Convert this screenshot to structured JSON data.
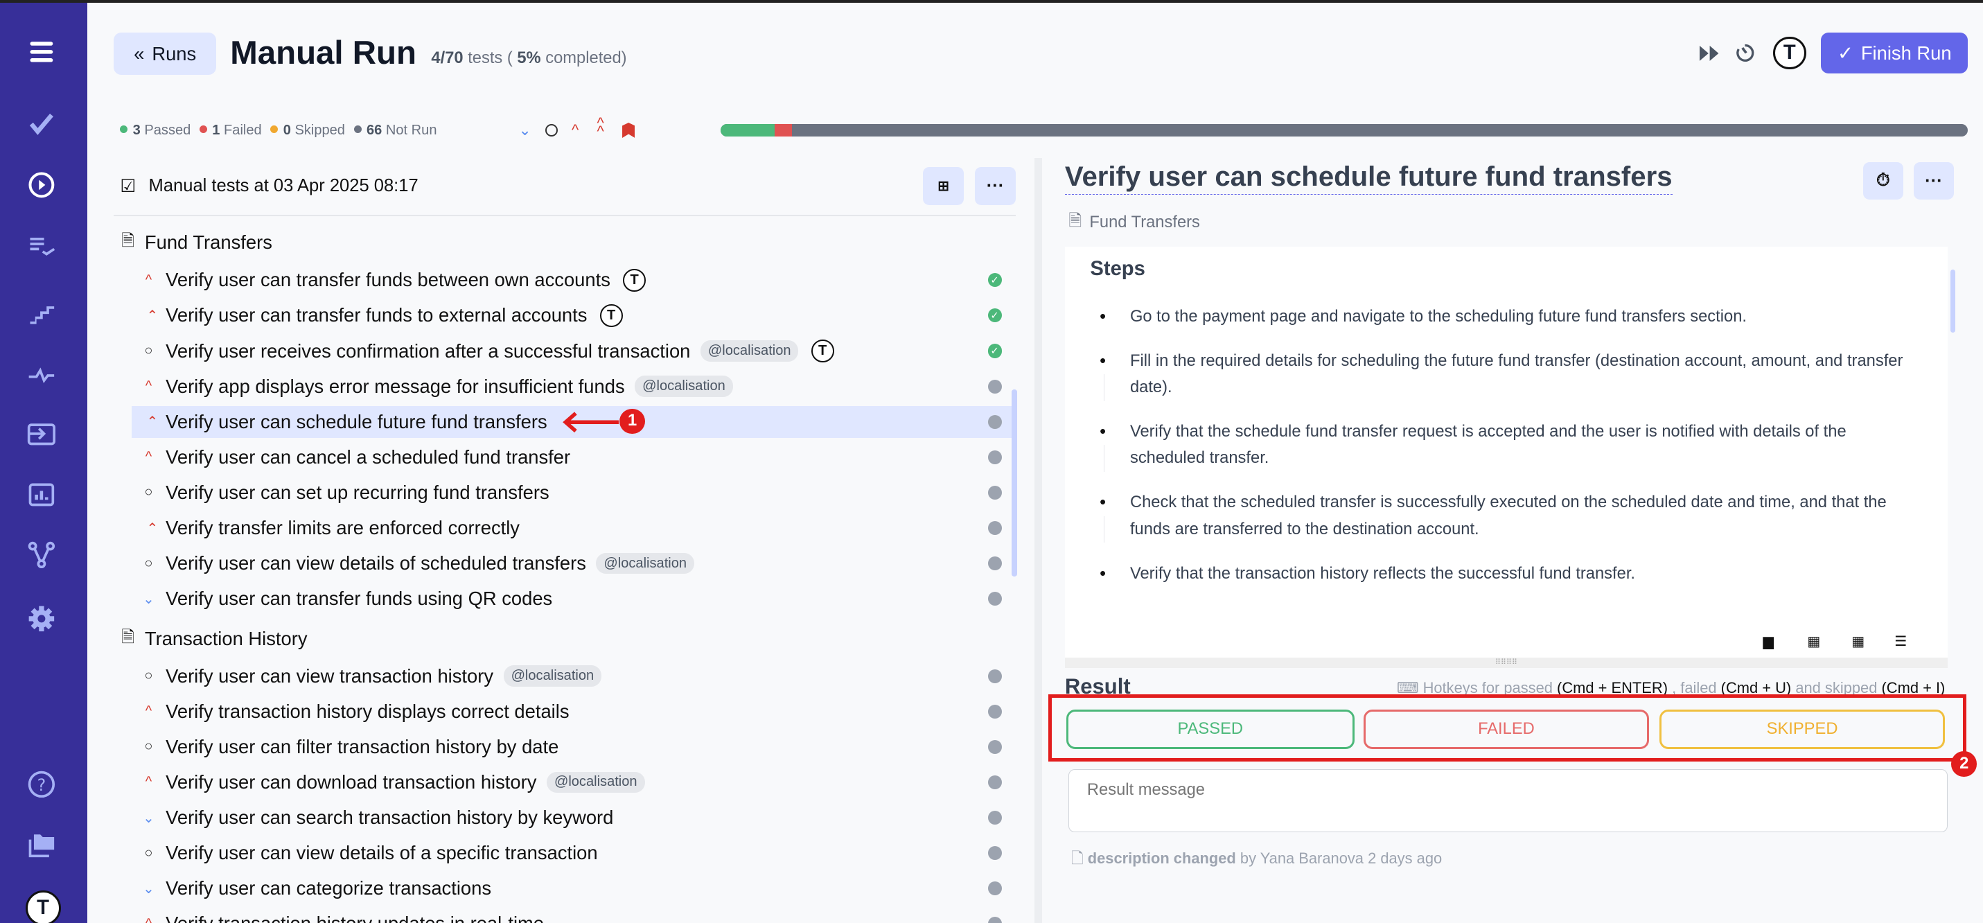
{
  "header": {
    "back_label": "Runs",
    "title": "Manual Run",
    "progress_count": "4/70",
    "progress_tests": "tests (",
    "progress_pct": "5%",
    "progress_suffix": "completed)",
    "finish_label": "Finish Run"
  },
  "stats": [
    {
      "count": "3",
      "label": "Passed",
      "color": "#4cb87a"
    },
    {
      "count": "1",
      "label": "Failed",
      "color": "#e05252"
    },
    {
      "count": "0",
      "label": "Skipped",
      "color": "#f0a830"
    },
    {
      "count": "66",
      "label": "Not Run",
      "color": "#6b7280"
    }
  ],
  "progress": {
    "passed": 3,
    "failed": 1,
    "skipped": 0,
    "not_run": 66,
    "total": 70
  },
  "colors": {
    "sidebar": "#372f99",
    "accent": "#6366e9",
    "passed": "#4cb87a",
    "failed": "#e66a6a",
    "skipped": "#f0c040"
  },
  "left": {
    "run_title": "Manual tests at 03 Apr 2025 08:17",
    "suites": [
      {
        "name": "Fund Transfers",
        "tests": [
          {
            "title": "Verify user can transfer funds between own accounts",
            "priority": "high",
            "status": "passed",
            "avatar": true
          },
          {
            "title": "Verify user can transfer funds to external accounts",
            "priority": "critical",
            "status": "passed",
            "avatar": true
          },
          {
            "title": "Verify user receives confirmation after a successful transaction",
            "priority": "normal",
            "tag": "@localisation",
            "status": "passed",
            "avatar": true
          },
          {
            "title": "Verify app displays error message for insufficient funds",
            "priority": "high",
            "tag": "@localisation",
            "status": "not_run"
          },
          {
            "title": "Verify user can schedule future fund transfers",
            "priority": "critical",
            "status": "not_run",
            "selected": true
          },
          {
            "title": "Verify user can cancel a scheduled fund transfer",
            "priority": "high",
            "status": "not_run"
          },
          {
            "title": "Verify user can set up recurring fund transfers",
            "priority": "normal",
            "status": "not_run"
          },
          {
            "title": "Verify transfer limits are enforced correctly",
            "priority": "critical",
            "status": "not_run"
          },
          {
            "title": "Verify user can view details of scheduled transfers",
            "priority": "normal",
            "tag": "@localisation",
            "status": "not_run"
          },
          {
            "title": "Verify user can transfer funds using QR codes",
            "priority": "low",
            "status": "not_run"
          }
        ]
      },
      {
        "name": "Transaction History",
        "tests": [
          {
            "title": "Verify user can view transaction history",
            "priority": "normal",
            "tag": "@localisation",
            "status": "not_run"
          },
          {
            "title": "Verify transaction history displays correct details",
            "priority": "high",
            "status": "not_run"
          },
          {
            "title": "Verify user can filter transaction history by date",
            "priority": "normal",
            "status": "not_run"
          },
          {
            "title": "Verify user can download transaction history",
            "priority": "high",
            "tag": "@localisation",
            "status": "not_run"
          },
          {
            "title": "Verify user can search transaction history by keyword",
            "priority": "low",
            "status": "not_run"
          },
          {
            "title": "Verify user can view details of a specific transaction",
            "priority": "normal",
            "status": "not_run"
          },
          {
            "title": "Verify user can categorize transactions",
            "priority": "low",
            "status": "not_run"
          },
          {
            "title": "Verify transaction history updates in real-time",
            "priority": "high",
            "status": "not_run"
          }
        ]
      }
    ]
  },
  "detail": {
    "title": "Verify user can schedule future fund transfers",
    "suite": "Fund Transfers",
    "steps_heading": "Steps",
    "steps": [
      "Go to the payment page and navigate to the scheduling future fund transfers section.",
      "Fill in the required details for scheduling the future fund transfer (destination account, amount, and transfer date).",
      "Verify that the schedule fund transfer request is accepted and the user is notified with details of the scheduled transfer.",
      "Check that the scheduled transfer is successfully executed on the scheduled date and time, and that the funds are transferred to the destination account.",
      "Verify that the transaction history reflects the successful fund transfer."
    ],
    "result_heading": "Result",
    "hotkeys": {
      "p1": "Hotkeys for passed",
      "k1": "(Cmd + ENTER)",
      "p2": ", failed",
      "k2": "(Cmd + U)",
      "p3": "and skipped",
      "k3": "(Cmd + I)"
    },
    "passed_label": "PASSED",
    "failed_label": "FAILED",
    "skipped_label": "SKIPPED",
    "result_placeholder": "Result message",
    "history_action": "description changed",
    "history_by": "by Yana Baranova 2 days ago"
  },
  "annotations": {
    "one": "1",
    "two": "2"
  }
}
